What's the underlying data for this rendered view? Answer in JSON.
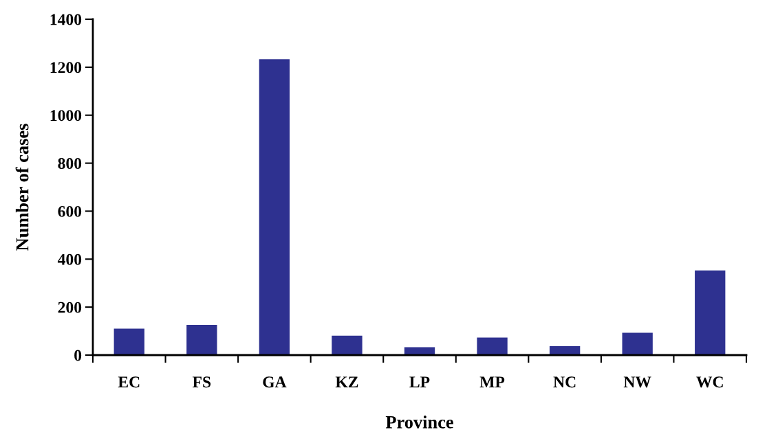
{
  "chart_data": {
    "type": "bar",
    "xlabel": "Province",
    "ylabel": "Number of cases",
    "categories": [
      "EC",
      "FS",
      "GA",
      "KZ",
      "LP",
      "MP",
      "NC",
      "NW",
      "WC"
    ],
    "values": [
      110,
      126,
      1233,
      81,
      33,
      73,
      37,
      93,
      353
    ],
    "color": "#2e3190",
    "ylim": [
      0,
      1400
    ],
    "yticks": [
      0,
      200,
      400,
      600,
      800,
      1000,
      1200,
      1400
    ],
    "grid": false
  }
}
